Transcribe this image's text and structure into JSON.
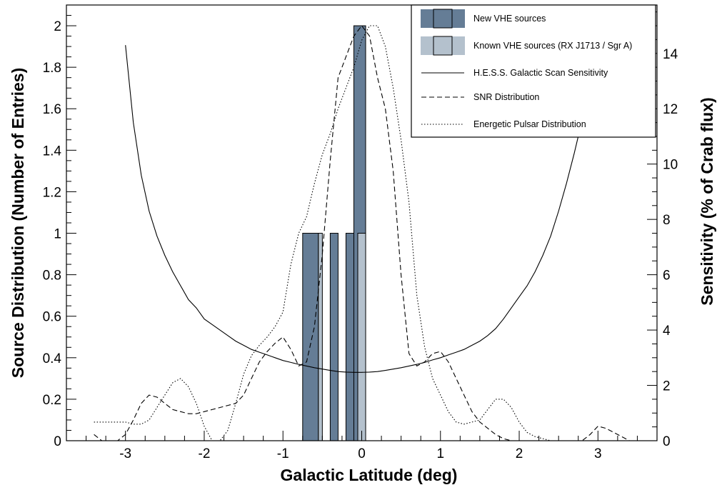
{
  "chart_data": {
    "type": "bar",
    "xlabel": "Galactic Latitude (deg)",
    "ylabel": "Source Distribution (Number of Entries)",
    "y2label": "Sensitivity (% of Crab flux)",
    "xlim": [
      -3.75,
      3.75
    ],
    "ylim": [
      0,
      2.1
    ],
    "y2lim": [
      0,
      15.75
    ],
    "x_ticks": [
      -3,
      -2,
      -1,
      0,
      1,
      2,
      3
    ],
    "y_ticks": [
      0,
      0.2,
      0.4,
      0.6,
      0.8,
      1,
      1.2,
      1.4,
      1.6,
      1.8,
      2
    ],
    "y2_ticks": [
      0,
      2,
      4,
      6,
      8,
      10,
      12,
      14
    ],
    "grid": false,
    "legend_position": "top-right",
    "histograms": [
      {
        "name": "New VHE sources",
        "color": "#657d96",
        "bins": [
          {
            "x0": -0.75,
            "x1": -0.55,
            "value": 1
          },
          {
            "x0": -0.4,
            "x1": -0.3,
            "value": 1
          },
          {
            "x0": -0.2,
            "x1": -0.1,
            "value": 1
          },
          {
            "x0": -0.1,
            "x1": 0.05,
            "value": 2
          }
        ]
      },
      {
        "name": "Known VHE sources (RX J1713 / Sgr A)",
        "color": "#b4c1cd",
        "bins": [
          {
            "x0": -0.55,
            "x1": -0.5,
            "value": 1
          },
          {
            "x0": -0.05,
            "x1": 0.05,
            "value": 1
          }
        ]
      }
    ],
    "series": [
      {
        "name": "H.E.S.S. Galactic Scan Sensitivity",
        "style": "solid",
        "axis": "right",
        "x": [
          -3.0,
          -2.9,
          -2.8,
          -2.7,
          -2.6,
          -2.5,
          -2.4,
          -2.3,
          -2.2,
          -2.1,
          -2.0,
          -1.9,
          -1.8,
          -1.7,
          -1.6,
          -1.5,
          -1.4,
          -1.3,
          -1.2,
          -1.1,
          -1.0,
          -0.9,
          -0.8,
          -0.7,
          -0.6,
          -0.5,
          -0.4,
          -0.3,
          -0.2,
          -0.1,
          0.0,
          0.1,
          0.2,
          0.3,
          0.4,
          0.5,
          0.6,
          0.7,
          0.8,
          0.9,
          1.0,
          1.1,
          1.2,
          1.3,
          1.4,
          1.5,
          1.6,
          1.7,
          1.8,
          1.9,
          2.0,
          2.1,
          2.2,
          2.3,
          2.4,
          2.5,
          2.6,
          2.7,
          2.8,
          2.9,
          3.0
        ],
        "values": [
          14.3,
          11.5,
          9.6,
          8.3,
          7.4,
          6.7,
          6.1,
          5.6,
          5.1,
          4.8,
          4.4,
          4.2,
          4.0,
          3.8,
          3.6,
          3.45,
          3.3,
          3.2,
          3.1,
          3.0,
          2.9,
          2.83,
          2.76,
          2.7,
          2.64,
          2.59,
          2.54,
          2.5,
          2.48,
          2.47,
          2.47,
          2.48,
          2.5,
          2.54,
          2.59,
          2.64,
          2.7,
          2.76,
          2.83,
          2.92,
          3.0,
          3.1,
          3.2,
          3.3,
          3.45,
          3.6,
          3.8,
          4.05,
          4.4,
          4.8,
          5.2,
          5.6,
          6.1,
          6.7,
          7.4,
          8.3,
          9.3,
          10.4,
          11.6,
          12.8,
          14.0
        ]
      },
      {
        "name": "SNR Distribution",
        "style": "dashed",
        "axis": "left",
        "x": [
          -3.4,
          -3.3,
          -3.2,
          -3.1,
          -3.0,
          -2.9,
          -2.8,
          -2.7,
          -2.6,
          -2.5,
          -2.4,
          -2.3,
          -2.2,
          -2.1,
          -2.0,
          -1.9,
          -1.8,
          -1.7,
          -1.6,
          -1.5,
          -1.4,
          -1.3,
          -1.2,
          -1.1,
          -1.0,
          -0.9,
          -0.8,
          -0.7,
          -0.6,
          -0.5,
          -0.4,
          -0.3,
          -0.2,
          -0.1,
          0.0,
          0.1,
          0.2,
          0.3,
          0.4,
          0.5,
          0.6,
          0.7,
          0.8,
          0.9,
          1.0,
          1.1,
          1.2,
          1.3,
          1.4,
          1.5,
          1.6,
          1.7,
          1.8,
          1.9,
          2.0,
          2.1,
          2.2,
          2.3,
          2.4,
          2.5,
          2.6,
          2.7,
          2.8,
          2.9,
          3.0,
          3.1,
          3.2,
          3.3,
          3.4
        ],
        "values": [
          0.03,
          0.0,
          0.0,
          0.0,
          0.03,
          0.1,
          0.18,
          0.22,
          0.21,
          0.18,
          0.15,
          0.14,
          0.13,
          0.13,
          0.14,
          0.15,
          0.16,
          0.17,
          0.18,
          0.22,
          0.3,
          0.38,
          0.43,
          0.47,
          0.5,
          0.44,
          0.36,
          0.38,
          0.55,
          0.9,
          1.35,
          1.75,
          1.85,
          1.95,
          2.0,
          1.95,
          1.75,
          1.6,
          1.3,
          0.8,
          0.42,
          0.36,
          0.38,
          0.42,
          0.43,
          0.38,
          0.3,
          0.22,
          0.14,
          0.09,
          0.06,
          0.03,
          0.01,
          0.0,
          0.0,
          0.0,
          0.0,
          0.0,
          0.0,
          0.0,
          0.0,
          0.0,
          0.0,
          0.03,
          0.07,
          0.06,
          0.04,
          0.02,
          0.0
        ]
      },
      {
        "name": "Energetic Pulsar Distribution",
        "style": "dotted",
        "axis": "left",
        "x": [
          -3.4,
          -3.3,
          -3.2,
          -3.1,
          -3.0,
          -2.9,
          -2.8,
          -2.7,
          -2.6,
          -2.5,
          -2.4,
          -2.3,
          -2.2,
          -2.1,
          -2.0,
          -1.9,
          -1.8,
          -1.7,
          -1.6,
          -1.5,
          -1.4,
          -1.3,
          -1.2,
          -1.1,
          -1.0,
          -0.9,
          -0.8,
          -0.7,
          -0.6,
          -0.5,
          -0.4,
          -0.3,
          -0.2,
          -0.1,
          0.0,
          0.1,
          0.2,
          0.3,
          0.4,
          0.5,
          0.6,
          0.7,
          0.8,
          0.9,
          1.0,
          1.1,
          1.2,
          1.3,
          1.4,
          1.5,
          1.6,
          1.7,
          1.8,
          1.9,
          2.0,
          2.1,
          2.2,
          2.3,
          2.4,
          2.5,
          2.6,
          2.7,
          2.8,
          2.9,
          3.0,
          3.1,
          3.2,
          3.3,
          3.4
        ],
        "values": [
          0.09,
          0.09,
          0.09,
          0.09,
          0.09,
          0.08,
          0.08,
          0.1,
          0.16,
          0.22,
          0.28,
          0.3,
          0.26,
          0.18,
          0.07,
          0.0,
          0.0,
          0.05,
          0.18,
          0.32,
          0.41,
          0.46,
          0.5,
          0.55,
          0.62,
          0.85,
          1.0,
          1.08,
          1.24,
          1.38,
          1.48,
          1.6,
          1.7,
          1.8,
          1.93,
          2.0,
          2.0,
          1.9,
          1.7,
          1.45,
          1.15,
          0.7,
          0.45,
          0.3,
          0.22,
          0.14,
          0.09,
          0.08,
          0.09,
          0.1,
          0.15,
          0.2,
          0.2,
          0.16,
          0.09,
          0.04,
          0.02,
          0.01,
          0.0,
          0.0,
          0.0,
          0.0,
          0.0,
          0.0,
          0.0,
          0.0,
          0.0,
          0.0,
          0.0
        ]
      }
    ]
  }
}
